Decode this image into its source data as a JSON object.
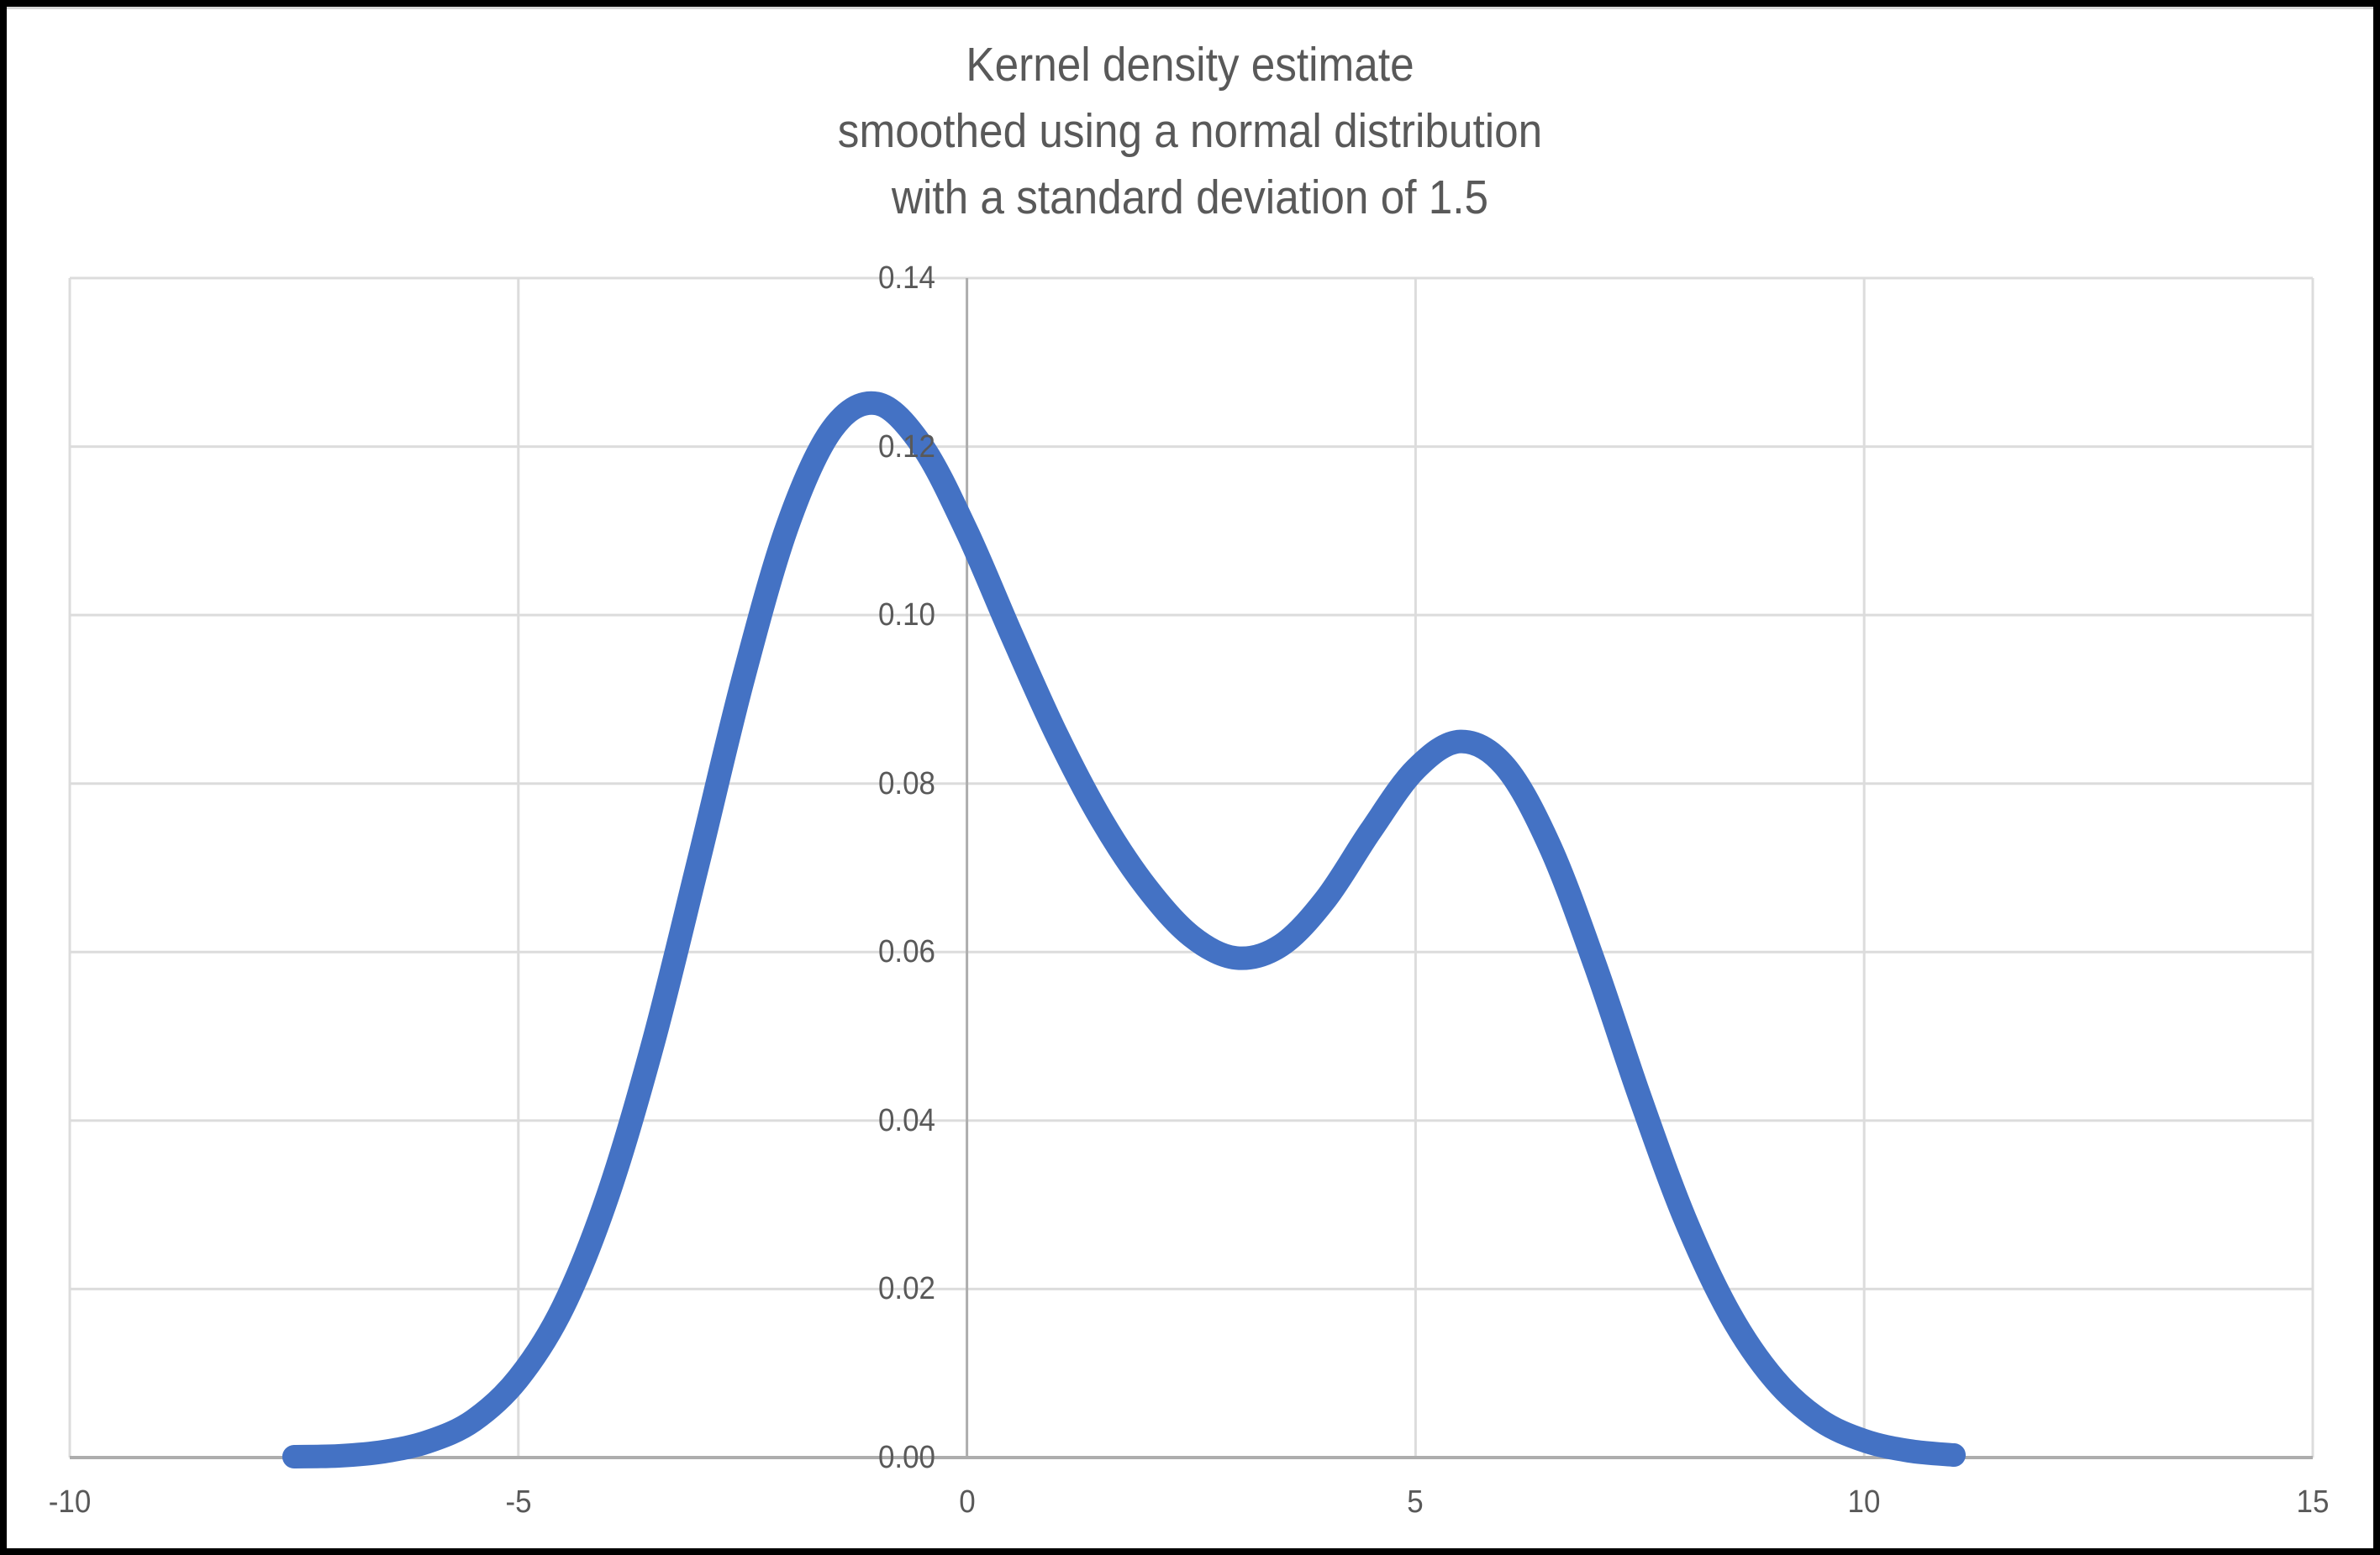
{
  "colors": {
    "line": "#4472C4",
    "gridline": "#DCDCDC",
    "axis": "#ADADAD",
    "text": "#595959",
    "background": "#FFFFFF",
    "frame": "#000000"
  },
  "chart_data": {
    "type": "line",
    "title_lines": [
      "Kernel density estimate",
      "smoothed using a normal distribution",
      "with a standard deviation of 1.5"
    ],
    "xlabel": "",
    "ylabel": "",
    "xlim": [
      -10,
      15
    ],
    "ylim": [
      0,
      0.14
    ],
    "grid": true,
    "legend_position": "none",
    "x_ticks": [
      {
        "value": -10,
        "label": "-10"
      },
      {
        "value": -5,
        "label": "-5"
      },
      {
        "value": 0,
        "label": "0"
      },
      {
        "value": 5,
        "label": "5"
      },
      {
        "value": 10,
        "label": "10"
      },
      {
        "value": 15,
        "label": "15"
      }
    ],
    "y_ticks": [
      {
        "value": 0.0,
        "label": "0.00"
      },
      {
        "value": 0.02,
        "label": "0.02"
      },
      {
        "value": 0.04,
        "label": "0.04"
      },
      {
        "value": 0.06,
        "label": "0.06"
      },
      {
        "value": 0.08,
        "label": "0.08"
      },
      {
        "value": 0.1,
        "label": "0.10"
      },
      {
        "value": 0.12,
        "label": "0.12"
      },
      {
        "value": 0.14,
        "label": "0.14"
      }
    ],
    "kernel": {
      "type": "normal",
      "stddev": 1.5
    },
    "key_points": {
      "peak1": {
        "x": -1.05,
        "y": 0.125
      },
      "valley": {
        "x": 3.05,
        "y": 0.059
      },
      "peak2": {
        "x": 5.5,
        "y": 0.085
      },
      "left_end": {
        "x": -7.5,
        "y": 0.0001
      },
      "right_end": {
        "x": 11.0,
        "y": 0.0003
      }
    },
    "series": [
      {
        "name": "Kernel density estimate",
        "color": "#4472C4",
        "stroke_width": 28,
        "x": [
          -7.5,
          -7.0,
          -6.5,
          -6.0,
          -5.5,
          -5.0,
          -4.5,
          -4.0,
          -3.5,
          -3.0,
          -2.5,
          -2.0,
          -1.5,
          -1.0,
          -0.5,
          0.0,
          0.5,
          1.0,
          1.5,
          2.0,
          2.5,
          3.0,
          3.5,
          4.0,
          4.5,
          5.0,
          5.5,
          6.0,
          6.5,
          7.0,
          7.5,
          8.0,
          8.5,
          9.0,
          9.5,
          10.0,
          10.5,
          11.0
        ],
        "y": [
          0.0001,
          0.0002,
          0.0007,
          0.0019,
          0.0044,
          0.0094,
          0.0179,
          0.0312,
          0.0491,
          0.0704,
          0.0922,
          0.1106,
          0.1221,
          0.1251,
          0.1201,
          0.1099,
          0.0976,
          0.0858,
          0.0757,
          0.0677,
          0.0619,
          0.0593,
          0.0608,
          0.0663,
          0.0744,
          0.0817,
          0.085,
          0.082,
          0.0725,
          0.0585,
          0.0428,
          0.0284,
          0.0171,
          0.0093,
          0.0045,
          0.002,
          0.0008,
          0.0003
        ]
      }
    ]
  }
}
